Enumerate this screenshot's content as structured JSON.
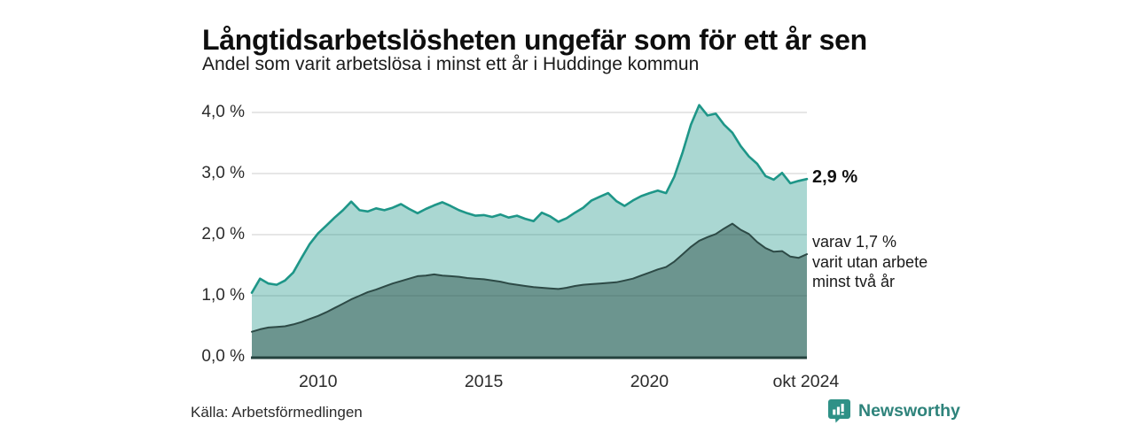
{
  "header": {
    "title": "Långtidsarbetslösheten ungefär som för ett år sen",
    "subtitle": "Andel som varit arbetslösa i minst ett år i Huddinge kommun"
  },
  "chart_data": {
    "type": "area",
    "title": "Långtidsarbetslösheten ungefär som för ett år sen",
    "subtitle": "Andel som varit arbetslösa i minst ett år i Huddinge kommun",
    "xlabel": "",
    "ylabel": "",
    "xlim": [
      2008,
      2024.75
    ],
    "ylim": [
      0,
      4.35
    ],
    "grid": true,
    "x": [
      2008,
      2008.25,
      2008.5,
      2008.75,
      2009,
      2009.25,
      2009.5,
      2009.75,
      2010,
      2010.25,
      2010.5,
      2010.75,
      2011,
      2011.25,
      2011.5,
      2011.75,
      2012,
      2012.25,
      2012.5,
      2012.75,
      2013,
      2013.25,
      2013.5,
      2013.75,
      2014,
      2014.25,
      2014.5,
      2014.75,
      2015,
      2015.25,
      2015.5,
      2015.75,
      2016,
      2016.25,
      2016.5,
      2016.75,
      2017,
      2017.25,
      2017.5,
      2017.75,
      2018,
      2018.25,
      2018.5,
      2018.75,
      2019,
      2019.25,
      2019.5,
      2019.75,
      2020,
      2020.25,
      2020.5,
      2020.75,
      2021,
      2021.25,
      2021.5,
      2021.75,
      2022,
      2022.25,
      2022.5,
      2022.75,
      2023,
      2023.25,
      2023.5,
      2023.75,
      2024,
      2024.25,
      2024.5,
      2024.75
    ],
    "series": [
      {
        "name": "Andel som varit arbetslösa i minst ett år",
        "latest_value": "2,9 %",
        "line_color": "#1e9688",
        "fill_color": "rgba(32,150,136,0.38)",
        "line_width": 2.6,
        "values": [
          1.05,
          1.28,
          1.2,
          1.18,
          1.25,
          1.38,
          1.62,
          1.85,
          2.02,
          2.15,
          2.28,
          2.4,
          2.54,
          2.4,
          2.38,
          2.43,
          2.4,
          2.44,
          2.5,
          2.42,
          2.35,
          2.42,
          2.48,
          2.53,
          2.47,
          2.4,
          2.35,
          2.31,
          2.32,
          2.29,
          2.33,
          2.28,
          2.31,
          2.26,
          2.22,
          2.36,
          2.3,
          2.21,
          2.27,
          2.36,
          2.44,
          2.56,
          2.62,
          2.68,
          2.55,
          2.47,
          2.56,
          2.63,
          2.68,
          2.72,
          2.68,
          2.95,
          3.35,
          3.8,
          4.12,
          3.95,
          3.98,
          3.8,
          3.67,
          3.45,
          3.28,
          3.16,
          2.96,
          2.9,
          3.01,
          2.84,
          2.88,
          2.91
        ]
      },
      {
        "name": "varav utan arbete minst två år",
        "latest_value": "1,7 %",
        "line_color": "#2d4a46",
        "fill_color": "rgba(33,68,63,0.45)",
        "line_width": 2,
        "values": [
          0.41,
          0.45,
          0.48,
          0.49,
          0.5,
          0.53,
          0.57,
          0.62,
          0.67,
          0.73,
          0.8,
          0.87,
          0.94,
          1.0,
          1.06,
          1.1,
          1.15,
          1.2,
          1.24,
          1.28,
          1.32,
          1.33,
          1.35,
          1.33,
          1.32,
          1.31,
          1.29,
          1.28,
          1.27,
          1.25,
          1.23,
          1.2,
          1.18,
          1.16,
          1.14,
          1.13,
          1.12,
          1.11,
          1.13,
          1.16,
          1.18,
          1.19,
          1.2,
          1.21,
          1.22,
          1.25,
          1.28,
          1.33,
          1.38,
          1.43,
          1.47,
          1.56,
          1.68,
          1.8,
          1.9,
          1.96,
          2.01,
          2.1,
          2.18,
          2.08,
          2.01,
          1.88,
          1.78,
          1.72,
          1.73,
          1.64,
          1.62,
          1.68
        ]
      }
    ],
    "xticks": [
      {
        "x": 2010,
        "label": "2010"
      },
      {
        "x": 2015,
        "label": "2015"
      },
      {
        "x": 2020,
        "label": "2020"
      },
      {
        "x": 2024.72,
        "label": "okt 2024"
      }
    ],
    "yticks": [
      {
        "v": 0,
        "label": "0,0 %"
      },
      {
        "v": 1,
        "label": "1,0 %"
      },
      {
        "v": 2,
        "label": "2,0 %"
      },
      {
        "v": 3,
        "label": "3,0 %"
      },
      {
        "v": 4,
        "label": "4,0 %"
      }
    ],
    "legend_position": "none"
  },
  "annotations": {
    "total": "2,9 %",
    "subset_line1": "varav 1,7 %",
    "subset_line2": "varit utan arbete",
    "subset_line3": "minst två år"
  },
  "footer": {
    "source": "Källa: Arbetsförmedlingen",
    "brand": "Newsworthy"
  },
  "colors": {
    "gridline": "#d6d6d6",
    "axis_line": "#24423e",
    "brand_teal": "#2e837b",
    "background": "#ffffff"
  }
}
